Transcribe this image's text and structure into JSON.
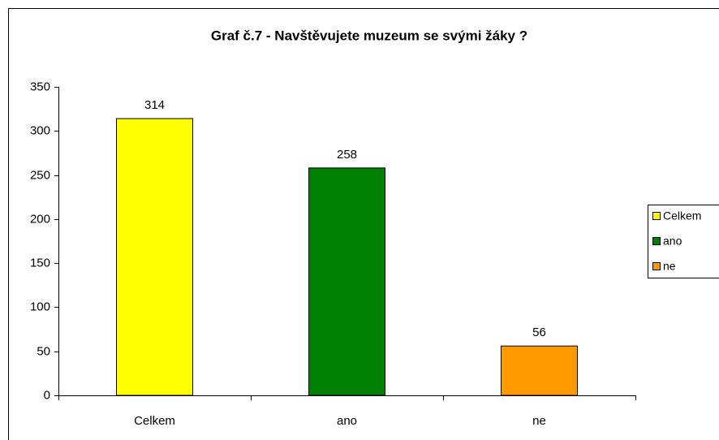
{
  "chart_data": {
    "type": "bar",
    "title": "Graf č.7 - Navštěvujete muzeum se svými žáky ?",
    "categories": [
      "Celkem",
      "ano",
      "ne"
    ],
    "values": [
      314,
      258,
      56
    ],
    "colors": [
      "#ffff00",
      "#008000",
      "#ff9900"
    ],
    "ylim": [
      0,
      350
    ],
    "yticks": [
      0,
      50,
      100,
      150,
      200,
      250,
      300,
      350
    ],
    "grid": false,
    "legend": "right"
  }
}
